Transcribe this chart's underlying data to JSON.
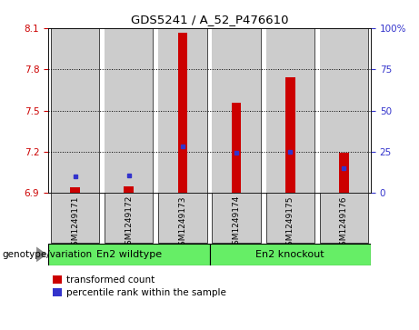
{
  "title": "GDS5241 / A_52_P476610",
  "samples": [
    "GSM1249171",
    "GSM1249172",
    "GSM1249173",
    "GSM1249174",
    "GSM1249175",
    "GSM1249176"
  ],
  "red_values": [
    6.94,
    6.95,
    8.065,
    7.56,
    7.74,
    7.19
  ],
  "blue_values": [
    7.02,
    7.03,
    7.24,
    7.195,
    7.2,
    7.08
  ],
  "ymin": 6.9,
  "ymax": 8.1,
  "yticks_left": [
    6.9,
    7.2,
    7.5,
    7.8,
    8.1
  ],
  "right_ytick_pcts": [
    0,
    25,
    50,
    75,
    100
  ],
  "right_ytick_labels": [
    "0",
    "25",
    "50",
    "75",
    "100%"
  ],
  "group1_label": "En2 wildtype",
  "group2_label": "En2 knockout",
  "group_label": "genotype/variation",
  "legend_red": "transformed count",
  "legend_blue": "percentile rank within the sample",
  "bar_color": "#cc0000",
  "blue_color": "#3333cc",
  "bg_color": "#cccccc",
  "plot_bg": "#ffffff",
  "left_axis_color": "#cc0000",
  "right_axis_color": "#3333cc",
  "green_color": "#66ee66",
  "bar_width": 0.18,
  "bar_span": 0.45
}
